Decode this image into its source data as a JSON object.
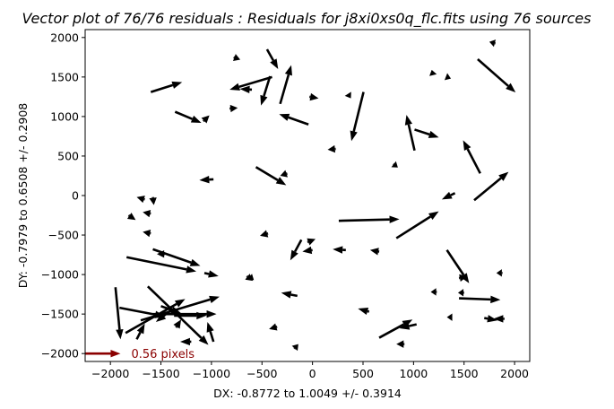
{
  "chart_data": {
    "type": "quiver",
    "title": "Vector plot of 76/76 residuals : Residuals for j8xi0xs0q_flc.fits using 76 sources",
    "xlabel": "DX: -0.8772 to 1.0049 +/- 0.3914",
    "ylabel": "DY: -0.7979 to 0.6508 +/- 0.2908",
    "xlim": [
      -2250,
      2150
    ],
    "ylim": [
      -2100,
      2100
    ],
    "xticks": [
      -2000,
      -1500,
      -1000,
      -500,
      0,
      500,
      1000,
      1500,
      2000
    ],
    "yticks": [
      -2000,
      -1500,
      -1000,
      -500,
      0,
      500,
      1000,
      1500,
      2000
    ],
    "grid": false,
    "arrow_color": "#000000",
    "key": {
      "label": "0.56 pixels",
      "color": "#8b0000",
      "x": -2250,
      "y": -2000,
      "dx": 350,
      "dy": 0
    },
    "vectors": [
      {
        "x": -1600,
        "y": 1310,
        "dx": 310,
        "dy": 125
      },
      {
        "x": -1360,
        "y": 1060,
        "dx": 260,
        "dy": -140
      },
      {
        "x": -1080,
        "y": 940,
        "dx": 60,
        "dy": 75
      },
      {
        "x": -780,
        "y": 1750,
        "dx": 65,
        "dy": -30
      },
      {
        "x": -820,
        "y": 1100,
        "dx": 80,
        "dy": 10
      },
      {
        "x": -400,
        "y": 1500,
        "dx": -420,
        "dy": -160
      },
      {
        "x": -450,
        "y": 1850,
        "dx": 110,
        "dy": -250
      },
      {
        "x": -320,
        "y": 1160,
        "dx": 110,
        "dy": 490
      },
      {
        "x": -420,
        "y": 1510,
        "dx": -90,
        "dy": -370
      },
      {
        "x": -600,
        "y": 1340,
        "dx": -120,
        "dy": 10
      },
      {
        "x": -40,
        "y": 900,
        "dx": -290,
        "dy": 130
      },
      {
        "x": -30,
        "y": 1250,
        "dx": 90,
        "dy": -20
      },
      {
        "x": 360,
        "y": 1270,
        "dx": 20,
        "dy": -40
      },
      {
        "x": 505,
        "y": 1310,
        "dx": -120,
        "dy": -620
      },
      {
        "x": 1330,
        "y": 1500,
        "dx": 40,
        "dy": -20
      },
      {
        "x": 1810,
        "y": 1925,
        "dx": -60,
        "dy": 20
      },
      {
        "x": 1635,
        "y": 1725,
        "dx": 375,
        "dy": -420
      },
      {
        "x": 1190,
        "y": 1540,
        "dx": -10,
        "dy": 50
      },
      {
        "x": 1010,
        "y": 570,
        "dx": -80,
        "dy": 450
      },
      {
        "x": 1010,
        "y": 835,
        "dx": 240,
        "dy": -100
      },
      {
        "x": 800,
        "y": 400,
        "dx": 45,
        "dy": -45
      },
      {
        "x": 1660,
        "y": 280,
        "dx": -170,
        "dy": 420
      },
      {
        "x": 1600,
        "y": -60,
        "dx": 340,
        "dy": 360
      },
      {
        "x": 1410,
        "y": 30,
        "dx": -130,
        "dy": -80
      },
      {
        "x": 230,
        "y": 590,
        "dx": -80,
        "dy": -10
      },
      {
        "x": -560,
        "y": 360,
        "dx": 300,
        "dy": -230
      },
      {
        "x": -250,
        "y": 280,
        "dx": -70,
        "dy": -30
      },
      {
        "x": -980,
        "y": 205,
        "dx": -140,
        "dy": -10
      },
      {
        "x": -1580,
        "y": -20,
        "dx": 10,
        "dy": -100
      },
      {
        "x": -1660,
        "y": -50,
        "dx": -80,
        "dy": 30
      },
      {
        "x": -1820,
        "y": -250,
        "dx": 70,
        "dy": -60
      },
      {
        "x": -1600,
        "y": -230,
        "dx": -80,
        "dy": 20
      },
      {
        "x": -1600,
        "y": -480,
        "dx": -80,
        "dy": 20
      },
      {
        "x": -1580,
        "y": -680,
        "dx": 470,
        "dy": -210
      },
      {
        "x": -1460,
        "y": -740,
        "dx": -80,
        "dy": 0
      },
      {
        "x": -1840,
        "y": -780,
        "dx": 690,
        "dy": -180
      },
      {
        "x": -1070,
        "y": -980,
        "dx": 140,
        "dy": -40
      },
      {
        "x": -650,
        "y": -1020,
        "dx": 60,
        "dy": -60
      },
      {
        "x": -440,
        "y": -480,
        "dx": -80,
        "dy": -30
      },
      {
        "x": -110,
        "y": -560,
        "dx": -110,
        "dy": -260
      },
      {
        "x": -50,
        "y": -590,
        "dx": 80,
        "dy": 40
      },
      {
        "x": 0,
        "y": -690,
        "dx": -100,
        "dy": -20
      },
      {
        "x": 330,
        "y": -690,
        "dx": -130,
        "dy": 10
      },
      {
        "x": 660,
        "y": -710,
        "dx": -90,
        "dy": 20
      },
      {
        "x": 260,
        "y": -320,
        "dx": 600,
        "dy": 20
      },
      {
        "x": 830,
        "y": -540,
        "dx": 420,
        "dy": 340
      },
      {
        "x": 1330,
        "y": -690,
        "dx": 220,
        "dy": -420
      },
      {
        "x": 1450,
        "y": -1045,
        "dx": 80,
        "dy": 20
      },
      {
        "x": 1880,
        "y": -980,
        "dx": -60,
        "dy": 0
      },
      {
        "x": 1450,
        "y": -1300,
        "dx": 410,
        "dy": -20
      },
      {
        "x": 1500,
        "y": -1230,
        "dx": -60,
        "dy": 0
      },
      {
        "x": 1230,
        "y": -1220,
        "dx": -60,
        "dy": 0
      },
      {
        "x": 1700,
        "y": -1550,
        "dx": 130,
        "dy": -30
      },
      {
        "x": 1900,
        "y": -1560,
        "dx": -110,
        "dy": 0
      },
      {
        "x": 1380,
        "y": -1540,
        "dx": -50,
        "dy": 0
      },
      {
        "x": 660,
        "y": -1800,
        "dx": 330,
        "dy": 230
      },
      {
        "x": 1030,
        "y": -1630,
        "dx": -170,
        "dy": -50
      },
      {
        "x": 910,
        "y": -1880,
        "dx": -80,
        "dy": 0
      },
      {
        "x": 560,
        "y": -1470,
        "dx": -110,
        "dy": 40
      },
      {
        "x": -150,
        "y": -1270,
        "dx": -160,
        "dy": 40
      },
      {
        "x": -350,
        "y": -1660,
        "dx": -80,
        "dy": -30
      },
      {
        "x": -180,
        "y": -1940,
        "dx": 40,
        "dy": 60
      },
      {
        "x": -620,
        "y": -1030,
        "dx": 40,
        "dy": -40
      },
      {
        "x": -1950,
        "y": -1160,
        "dx": 50,
        "dy": -660
      },
      {
        "x": -1910,
        "y": -1420,
        "dx": 450,
        "dy": -110
      },
      {
        "x": -1850,
        "y": -1740,
        "dx": 590,
        "dy": 430
      },
      {
        "x": -1740,
        "y": -1820,
        "dx": 80,
        "dy": 200
      },
      {
        "x": -1630,
        "y": -1150,
        "dx": 600,
        "dy": -740
      },
      {
        "x": -1700,
        "y": -1580,
        "dx": 780,
        "dy": 300
      },
      {
        "x": -1580,
        "y": -1500,
        "dx": 630,
        "dy": 0
      },
      {
        "x": -1370,
        "y": -1520,
        "dx": 320,
        "dy": 0
      },
      {
        "x": -1500,
        "y": -1400,
        "dx": 200,
        "dy": -90
      },
      {
        "x": -1400,
        "y": -1450,
        "dx": -150,
        "dy": -150
      },
      {
        "x": -1200,
        "y": -1850,
        "dx": -110,
        "dy": 0
      },
      {
        "x": -980,
        "y": -1850,
        "dx": -60,
        "dy": 250
      },
      {
        "x": -1350,
        "y": -1670,
        "dx": 50,
        "dy": 100
      }
    ]
  }
}
